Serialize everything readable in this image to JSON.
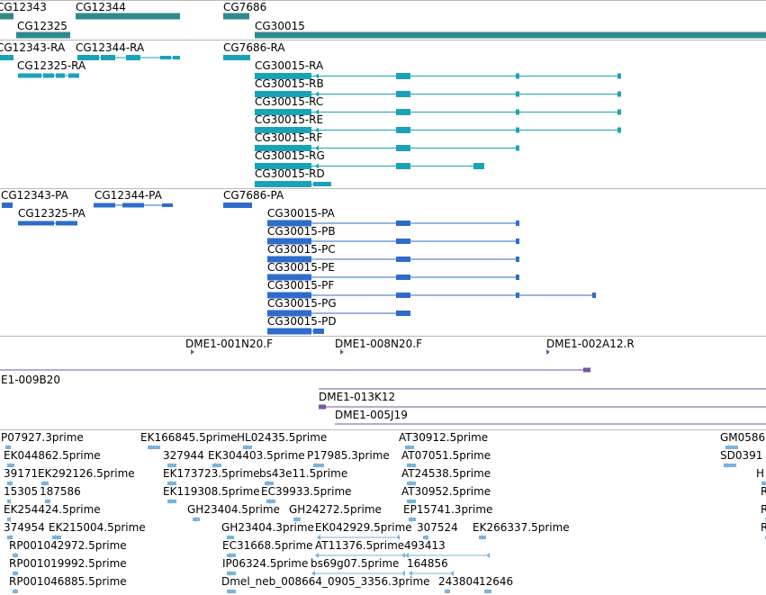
{
  "colors": {
    "gene": "#2f8a8e",
    "transcript": "#1aa3b8",
    "protein": "#2f6cc9",
    "clone": "#7356a6",
    "est": "#7ab3dc",
    "separator": "#b8b8b8"
  },
  "tracks": {
    "genes": {
      "name": "gene-track",
      "labels": [
        {
          "text": "CG12343"
        },
        {
          "text": "CG12344"
        },
        {
          "text": "CG7686"
        },
        {
          "text": "CG12325"
        },
        {
          "text": "CG30015"
        }
      ]
    },
    "transcripts": {
      "name": "transcript-track",
      "labels": [
        {
          "text": "CG12343-RA"
        },
        {
          "text": "CG12344-RA"
        },
        {
          "text": "CG7686-RA"
        },
        {
          "text": "CG12325-RA"
        },
        {
          "text": "CG30015-RA"
        },
        {
          "text": "CG30015-RB"
        },
        {
          "text": "CG30015-RC"
        },
        {
          "text": "CG30015-RE"
        },
        {
          "text": "CG30015-RF"
        },
        {
          "text": "CG30015-RG"
        },
        {
          "text": "CG30015-RD"
        }
      ]
    },
    "proteins": {
      "name": "protein-track",
      "labels": [
        {
          "text": "CG12343-PA"
        },
        {
          "text": "CG12344-PA"
        },
        {
          "text": "CG7686-PA"
        },
        {
          "text": "CG12325-PA"
        },
        {
          "text": "CG30015-PA"
        },
        {
          "text": "CG30015-PB"
        },
        {
          "text": "CG30015-PC"
        },
        {
          "text": "CG30015-PE"
        },
        {
          "text": "CG30015-PF"
        },
        {
          "text": "CG30015-PG"
        },
        {
          "text": "CG30015-PD"
        }
      ]
    },
    "clones": {
      "name": "clone-track",
      "labels": [
        {
          "text": "DME1-001N20.F"
        },
        {
          "text": "DME1-008N20.F"
        },
        {
          "text": "DME1-002A12.R"
        },
        {
          "text": "E1-009B20"
        },
        {
          "text": "DME1-013K12"
        },
        {
          "text": "DME1-005J19"
        }
      ]
    },
    "ests": {
      "name": "est-track",
      "labels": [
        {
          "text": "P07927.3prime"
        },
        {
          "text": "EK166845.5prime"
        },
        {
          "text": "HL02435.5prime"
        },
        {
          "text": "AT30912.5prime"
        },
        {
          "text": "GM0586"
        },
        {
          "text": "EK044862.5prime"
        },
        {
          "text": "327944"
        },
        {
          "text": "EK304403.5prime"
        },
        {
          "text": "P17985.3prime"
        },
        {
          "text": "AT07051.5prime"
        },
        {
          "text": "SD0391"
        },
        {
          "text": "39171"
        },
        {
          "text": "EK292126.5prime"
        },
        {
          "text": "EK173723.5prime"
        },
        {
          "text": "bs43e11.5prime"
        },
        {
          "text": "AT24538.5prime"
        },
        {
          "text": "H"
        },
        {
          "text": "15305"
        },
        {
          "text": "187586"
        },
        {
          "text": "EK119308.5prime"
        },
        {
          "text": "EC39933.5prime"
        },
        {
          "text": "AT30952.5prime"
        },
        {
          "text": "R"
        },
        {
          "text": "EK254424.5prime"
        },
        {
          "text": "GH23404.5prime"
        },
        {
          "text": "GH24272.5prime"
        },
        {
          "text": "EP15741.3prime"
        },
        {
          "text": "R"
        },
        {
          "text": "374954"
        },
        {
          "text": "EK215004.5prime"
        },
        {
          "text": "GH23404.3prime"
        },
        {
          "text": "EK042929.5prime"
        },
        {
          "text": "307524"
        },
        {
          "text": "EK266337.5prime"
        },
        {
          "text": "R"
        },
        {
          "text": "RP001042972.5prime"
        },
        {
          "text": "EC31668.5prime"
        },
        {
          "text": "AT11376.5prime"
        },
        {
          "text": "493413"
        },
        {
          "text": "RP001019992.5prime"
        },
        {
          "text": "IP06324.5prime"
        },
        {
          "text": "bs69g07.5prime"
        },
        {
          "text": "164856"
        },
        {
          "text": "RP001046885.5prime"
        },
        {
          "text": "Dmel_neb_008664_0905_3356.3prime"
        },
        {
          "text": "243804"
        },
        {
          "text": "12646"
        }
      ]
    }
  }
}
